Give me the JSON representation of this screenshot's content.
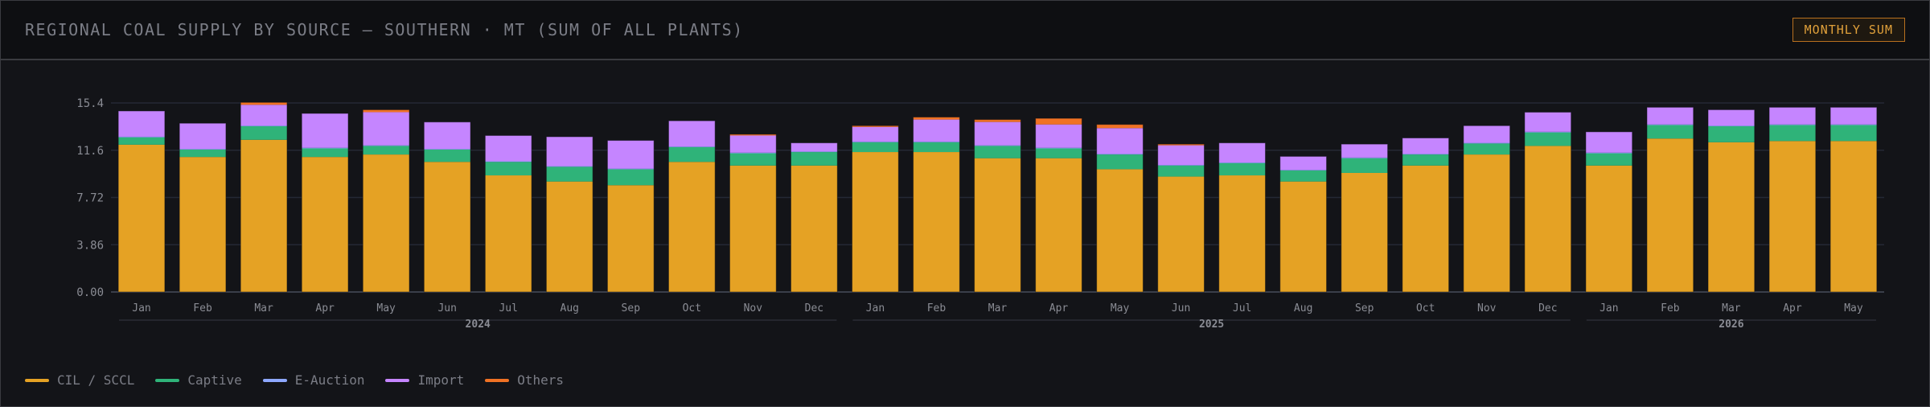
{
  "header": {
    "title": "REGIONAL COAL SUPPLY BY SOURCE — SOUTHERN · MT (SUM OF ALL PLANTS)",
    "badge": "MONTHLY SUM"
  },
  "chart_data": {
    "type": "bar",
    "stacked": true,
    "grid": true,
    "legend_position": "bottom-left",
    "ylim": [
      0,
      15.4
    ],
    "yticks": [
      "0.00",
      "3.86",
      "7.72",
      "11.6",
      "15.4"
    ],
    "categories": [
      "Jan",
      "Feb",
      "Mar",
      "Apr",
      "May",
      "Jun",
      "Jul",
      "Aug",
      "Sep",
      "Oct",
      "Nov",
      "Dec",
      "Jan",
      "Feb",
      "Mar",
      "Apr",
      "May",
      "Jun",
      "Jul",
      "Aug",
      "Sep",
      "Oct",
      "Nov",
      "Dec",
      "Jan",
      "Feb",
      "Mar",
      "Apr",
      "May"
    ],
    "year_labels": [
      {
        "label": "2024",
        "start": 0,
        "end": 11
      },
      {
        "label": "2025",
        "start": 12,
        "end": 23
      },
      {
        "label": "2026",
        "start": 24,
        "end": 28
      }
    ],
    "series": [
      {
        "name": "CIL / SCCL",
        "color": "#e5a224",
        "values": [
          12.0,
          11.0,
          12.4,
          11.0,
          11.2,
          10.6,
          9.5,
          9.0,
          8.7,
          10.6,
          10.3,
          10.3,
          11.4,
          11.4,
          10.9,
          10.9,
          10.0,
          9.4,
          9.5,
          9.0,
          9.7,
          10.3,
          11.2,
          11.9,
          10.3,
          12.5,
          12.2,
          12.3,
          12.3
        ]
      },
      {
        "name": "Captive",
        "color": "#2fb379",
        "values": [
          0.6,
          0.6,
          1.1,
          0.7,
          0.7,
          1.0,
          1.1,
          1.2,
          1.3,
          1.2,
          1.0,
          1.1,
          0.8,
          0.8,
          1.0,
          0.8,
          1.2,
          0.9,
          1.0,
          0.9,
          1.2,
          0.9,
          0.9,
          1.1,
          1.0,
          1.1,
          1.3,
          1.3,
          1.3
        ]
      },
      {
        "name": "E-Auction",
        "color": "#8ea8ff",
        "values": [
          0.05,
          0.05,
          0.05,
          0.05,
          0.05,
          0.05,
          0.05,
          0.05,
          0.05,
          0.05,
          0.05,
          0.05,
          0.05,
          0.05,
          0.05,
          0.05,
          0.05,
          0.05,
          0.05,
          0.05,
          0.05,
          0.05,
          0.05,
          0.05,
          0.05,
          0.05,
          0.05,
          0.05,
          0.05
        ]
      },
      {
        "name": "Import",
        "color": "#c585ff",
        "values": [
          2.1,
          2.1,
          1.7,
          2.8,
          2.7,
          2.2,
          2.1,
          2.4,
          2.3,
          2.1,
          1.4,
          0.7,
          1.2,
          1.8,
          1.9,
          1.9,
          2.1,
          1.6,
          1.6,
          1.1,
          1.1,
          1.3,
          1.4,
          1.6,
          1.7,
          1.4,
          1.3,
          1.4,
          1.4
        ]
      },
      {
        "name": "Others",
        "color": "#f07224",
        "values": [
          0,
          0,
          0.2,
          0,
          0.2,
          0,
          0,
          0,
          0,
          0,
          0.1,
          0,
          0.1,
          0.2,
          0.2,
          0.5,
          0.3,
          0.1,
          0,
          0,
          0,
          0,
          0,
          0,
          0,
          0,
          0,
          0,
          0
        ]
      }
    ]
  }
}
